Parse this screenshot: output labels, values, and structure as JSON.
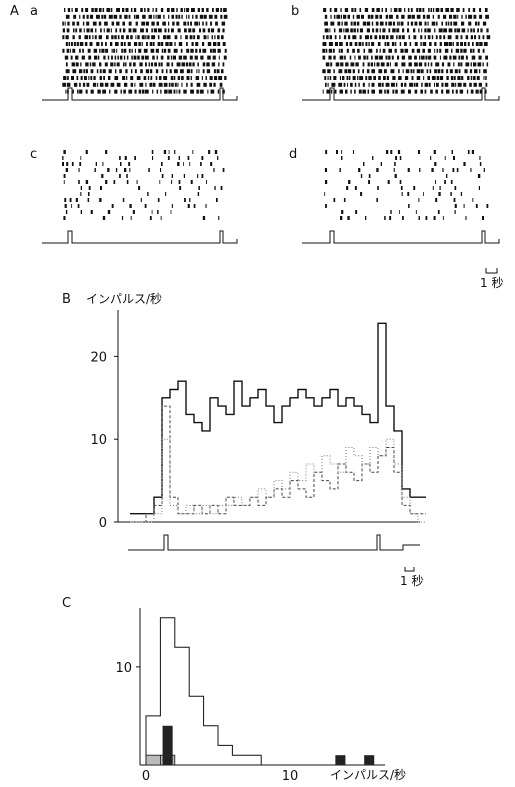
{
  "panel_labels": {
    "A": "A",
    "B": "B",
    "C": "C",
    "a": "a",
    "b": "b",
    "c": "c",
    "d": "d"
  },
  "scale_bar_label": "1 秒",
  "chart_data": [
    {
      "type": "raster",
      "panel": "A",
      "subpanels": [
        {
          "label": "a",
          "trials": 13,
          "firing": "dense"
        },
        {
          "label": "b",
          "trials": 13,
          "firing": "dense"
        },
        {
          "label": "c",
          "trials": 12,
          "firing": "sparse"
        },
        {
          "label": "d",
          "trials": 12,
          "firing": "sparse"
        }
      ],
      "scale_bar": "1 秒"
    },
    {
      "type": "line",
      "panel": "B",
      "ylabel": "インパルス/秒",
      "ylim": [
        0,
        25
      ],
      "yticks": [
        0,
        10,
        20
      ],
      "x_unit": "s",
      "scale_bar": "1 秒",
      "series": [
        {
          "style": "solid",
          "color": "#111111",
          "x": [
            0,
            0.5,
            1,
            1.5,
            2,
            2.5,
            3,
            3.5,
            4,
            4.5,
            5,
            5.5,
            6,
            6.5,
            7,
            7.5,
            8,
            8.5,
            9,
            9.5,
            10,
            10.5,
            11,
            11.5,
            12,
            12.5,
            13,
            13.5,
            14,
            14.5,
            15,
            15.5,
            16,
            16.5,
            17,
            17.5,
            18
          ],
          "y": [
            1,
            1,
            1,
            3,
            15,
            16,
            17,
            13,
            12,
            11,
            15,
            14,
            13,
            17,
            14,
            15,
            16,
            14,
            12,
            14,
            15,
            16,
            15,
            14,
            15,
            16,
            14,
            15,
            14,
            13,
            12,
            24,
            14,
            11,
            4,
            3,
            3
          ]
        },
        {
          "style": "dashed",
          "color": "#444444",
          "x": [
            0,
            0.5,
            1,
            1.5,
            2,
            2.5,
            3,
            3.5,
            4,
            4.5,
            5,
            5.5,
            6,
            6.5,
            7,
            7.5,
            8,
            8.5,
            9,
            9.5,
            10,
            10.5,
            11,
            11.5,
            12,
            12.5,
            13,
            13.5,
            14,
            14.5,
            15,
            15.5,
            16,
            16.5,
            17,
            17.5,
            18
          ],
          "y": [
            0,
            0,
            1,
            2,
            14,
            3,
            1,
            1,
            2,
            1,
            2,
            1,
            3,
            2,
            2,
            3,
            2,
            3,
            4,
            3,
            5,
            4,
            3,
            6,
            5,
            4,
            7,
            6,
            5,
            7,
            6,
            8,
            9,
            6,
            2,
            1,
            1
          ]
        },
        {
          "style": "dotted",
          "color": "#777777",
          "x": [
            0,
            0.5,
            1,
            1.5,
            2,
            2.5,
            3,
            3.5,
            4,
            4.5,
            5,
            5.5,
            6,
            6.5,
            7,
            7.5,
            8,
            8.5,
            9,
            9.5,
            10,
            10.5,
            11,
            11.5,
            12,
            12.5,
            13,
            13.5,
            14,
            14.5,
            15,
            15.5,
            16,
            16.5,
            17,
            17.5,
            18
          ],
          "y": [
            0,
            0,
            0,
            1,
            10,
            2,
            1,
            2,
            1,
            2,
            1,
            2,
            2,
            3,
            2,
            3,
            4,
            3,
            5,
            4,
            6,
            5,
            7,
            6,
            8,
            7,
            6,
            9,
            8,
            7,
            9,
            8,
            10,
            7,
            3,
            1,
            0
          ]
        }
      ],
      "stimulus_trace": "step"
    },
    {
      "type": "histogram",
      "panel": "C",
      "xlabel": "インパルス/秒",
      "xticks": [
        0,
        10
      ],
      "yticks": [
        10
      ],
      "ylim": [
        0,
        16
      ],
      "bin_width": 1,
      "outline_bins": {
        "x": [
          0,
          1,
          2,
          3,
          4,
          5,
          6,
          7,
          8,
          9,
          10,
          11,
          12,
          13,
          14,
          15
        ],
        "y": [
          5,
          15,
          12,
          7,
          4,
          2,
          1,
          1,
          0,
          0,
          0,
          0,
          0,
          0,
          0,
          0
        ]
      },
      "hatched_bins": {
        "x": [
          0,
          1
        ],
        "y": [
          1,
          1
        ]
      },
      "filled_bins": {
        "x": [
          1,
          13,
          14,
          15
        ],
        "y": [
          4,
          1,
          0,
          1
        ]
      }
    }
  ]
}
